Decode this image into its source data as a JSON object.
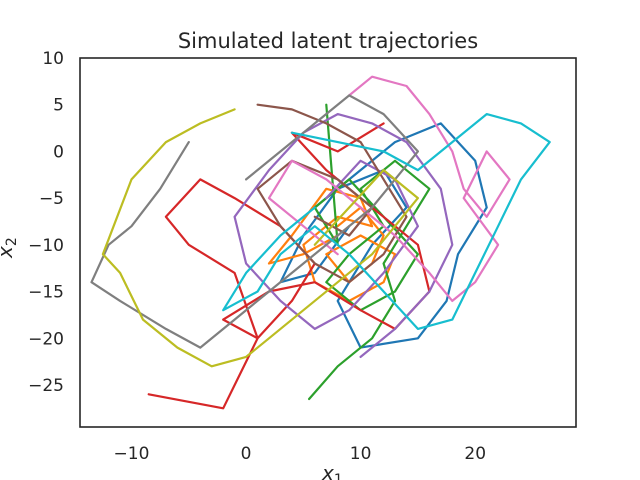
{
  "chart_data": {
    "type": "line",
    "title": "Simulated latent trajectories",
    "xlabel": "x",
    "xlabel_sub": "1",
    "ylabel": "x",
    "ylabel_sub": "2",
    "xlim": [
      -14.5,
      28.8
    ],
    "ylim": [
      -29.5,
      10
    ],
    "xticks": [
      -10,
      0,
      10,
      20
    ],
    "xtick_labels": [
      "−10",
      "0",
      "10",
      "20"
    ],
    "yticks": [
      10,
      5,
      0,
      -5,
      -10,
      -15,
      -20,
      -25
    ],
    "ytick_labels": [
      "10",
      "5",
      "0",
      "−5",
      "−10",
      "−15",
      "−20",
      "−25"
    ],
    "grid": false,
    "legend": "none",
    "series": [
      {
        "color": "#1f77b4",
        "x": [
          6,
          9,
          13,
          17,
          20,
          21,
          18.5,
          17.5,
          15,
          10,
          8,
          11,
          14,
          12,
          8,
          5,
          3,
          6,
          9
        ],
        "y": [
          -6,
          -3,
          1,
          3,
          -1,
          -6,
          -11,
          -16,
          -20,
          -21,
          -16,
          -10,
          -6,
          -2,
          -4,
          -9,
          -14,
          -13,
          -8
        ]
      },
      {
        "color": "#ff7f0e",
        "x": [
          8,
          10,
          12,
          11,
          9,
          7,
          10,
          13,
          12,
          9,
          6,
          5,
          8,
          11,
          10,
          7,
          4,
          2,
          5,
          8
        ],
        "y": [
          -8,
          -6,
          -9,
          -12,
          -14,
          -11,
          -9,
          -11,
          -14,
          -16,
          -14,
          -10,
          -7,
          -8,
          -5,
          -4,
          -9,
          -12,
          -11,
          -9
        ]
      },
      {
        "color": "#2ca02c",
        "x": [
          5.5,
          8,
          11,
          13,
          12,
          14,
          16,
          13,
          10,
          12,
          9,
          7,
          10,
          13,
          15,
          12,
          9,
          6,
          8,
          7
        ],
        "y": [
          -26.5,
          -23,
          -20,
          -16,
          -12,
          -8,
          -4,
          -1,
          -4,
          -8,
          -11,
          -14,
          -17,
          -15,
          -11,
          -7,
          -3,
          -6,
          -10,
          5
        ]
      },
      {
        "color": "#d62728",
        "x": [
          -8.5,
          -2,
          1,
          -1,
          -5,
          -7,
          -4,
          -1,
          3,
          6,
          4,
          1,
          -2,
          2,
          6,
          10,
          13,
          16,
          15,
          11,
          7,
          4,
          8,
          12
        ],
        "y": [
          -26,
          -27.5,
          -20,
          -13,
          -10,
          -7,
          -3,
          -5,
          -8,
          -12,
          -16,
          -20,
          -18,
          -15,
          -14,
          -17,
          -19,
          -15,
          -10,
          -6,
          -2,
          2,
          0,
          3
        ]
      },
      {
        "color": "#9467bd",
        "x": [
          10,
          13,
          16,
          18,
          17,
          14,
          11,
          8,
          5,
          2,
          -1,
          0,
          3,
          6,
          9,
          12,
          15,
          13,
          10,
          7
        ],
        "y": [
          -22,
          -19,
          -15,
          -10,
          -4,
          1,
          3,
          4,
          2,
          -2,
          -7,
          -12,
          -16,
          -19,
          -17,
          -13,
          -8,
          -3,
          -1,
          -5
        ]
      },
      {
        "color": "#8c564b",
        "x": [
          1,
          4,
          7,
          10,
          12,
          14,
          12,
          9,
          6,
          3,
          1,
          4,
          8,
          11,
          9,
          6
        ],
        "y": [
          5,
          4.5,
          3,
          1,
          -3,
          -7,
          -11,
          -14,
          -12,
          -8,
          -4,
          -1,
          -3,
          -6,
          -9,
          -7
        ]
      },
      {
        "color": "#e377c2",
        "x": [
          9,
          11,
          14,
          16,
          18,
          19,
          21,
          23,
          21,
          19,
          22,
          20,
          18,
          16,
          13,
          10,
          7,
          4,
          2,
          5,
          8
        ],
        "y": [
          6,
          8,
          7,
          4,
          0,
          -4,
          -7,
          -3,
          0,
          -5,
          -10,
          -14,
          -16,
          -13,
          -9,
          -6,
          -3,
          -1,
          -5,
          -8,
          -11
        ]
      },
      {
        "color": "#7f7f7f",
        "x": [
          -5,
          -7.5,
          -10,
          -12,
          -13.5,
          -11,
          -7,
          -4,
          -1,
          2,
          5,
          8,
          11,
          13,
          15,
          12,
          9,
          6,
          3,
          0
        ],
        "y": [
          1,
          -4,
          -8,
          -10,
          -14,
          -16,
          -19,
          -21,
          -18,
          -15,
          -12,
          -9,
          -6,
          -3,
          0,
          4,
          6,
          3,
          0,
          -3
        ]
      },
      {
        "color": "#bcbd22",
        "x": [
          -1,
          -4,
          -7,
          -10,
          -12.5,
          -11,
          -9,
          -6,
          -3,
          0,
          2,
          5,
          8,
          11,
          13,
          15,
          12,
          9,
          6
        ],
        "y": [
          4.5,
          3,
          1,
          -3,
          -11,
          -13,
          -18,
          -21,
          -23,
          -22,
          -20,
          -17,
          -14,
          -11,
          -8,
          -5,
          -2,
          -6,
          -10
        ]
      },
      {
        "color": "#17becf",
        "x": [
          4,
          8,
          12,
          15,
          18,
          21,
          24,
          26.5,
          24,
          22,
          20,
          18,
          15,
          12,
          9,
          6,
          3,
          1,
          -2,
          0,
          3,
          6
        ],
        "y": [
          2,
          1,
          0,
          -2,
          1,
          4,
          3,
          1,
          -3,
          -8,
          -13,
          -18,
          -19,
          -15,
          -11,
          -8,
          -11,
          -15,
          -17,
          -13,
          -9,
          -6
        ]
      }
    ]
  }
}
